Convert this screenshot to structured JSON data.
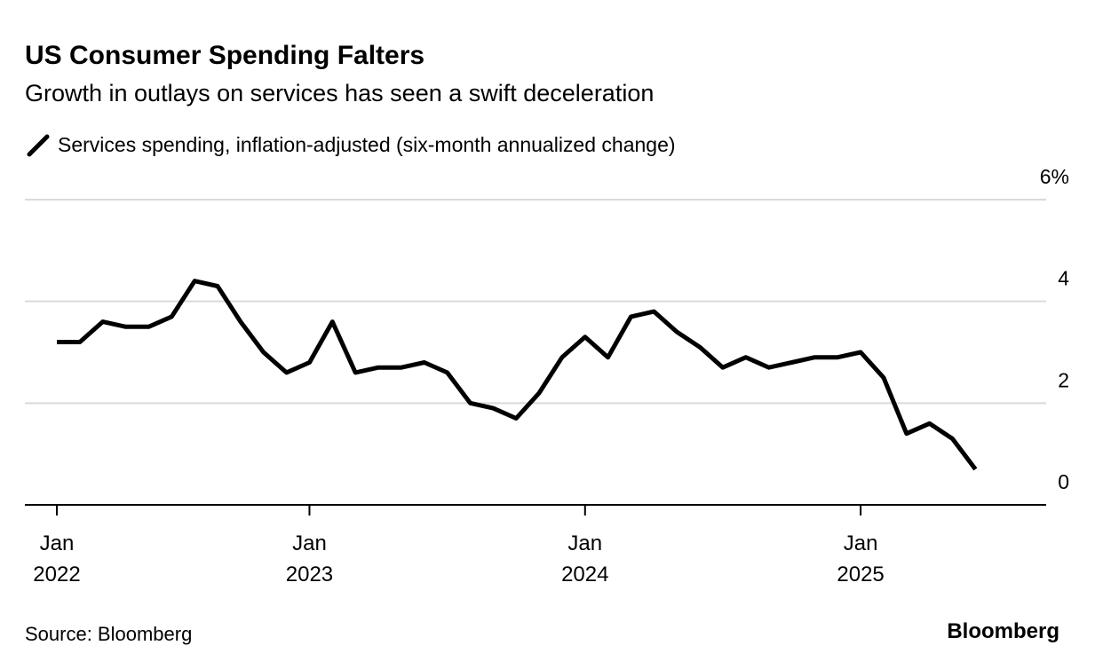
{
  "chart_data": {
    "type": "line",
    "title": "US Consumer Spending Falters",
    "subtitle": "Growth in outlays on services has seen a swift deceleration",
    "source": "Source: Bloomberg",
    "brand": "Bloomberg",
    "categories": [
      "Jan 2022",
      null,
      null,
      null,
      null,
      null,
      null,
      null,
      null,
      null,
      null,
      "Jan 2023",
      null,
      null,
      null,
      null,
      null,
      null,
      null,
      null,
      null,
      null,
      null,
      "Jan 2024",
      null,
      null,
      null,
      null,
      null,
      null,
      null,
      null,
      null,
      null,
      null,
      "Jan 2025",
      null,
      null,
      null,
      null,
      null
    ],
    "series": [
      {
        "name": "Services spending, inflation-adjusted (six-month annualized change)",
        "color": "#000000",
        "values": [
          3.2,
          3.2,
          3.6,
          3.5,
          3.5,
          3.7,
          4.4,
          4.3,
          3.6,
          3.0,
          2.6,
          2.8,
          3.6,
          2.6,
          2.7,
          2.7,
          2.8,
          2.6,
          2.0,
          1.9,
          1.7,
          2.2,
          2.9,
          3.3,
          2.9,
          3.7,
          3.8,
          3.4,
          3.1,
          2.7,
          2.9,
          2.7,
          2.8,
          2.9,
          2.9,
          3.0,
          2.5,
          1.4,
          1.6,
          1.3,
          0.7
        ]
      }
    ],
    "ylim": [
      0,
      6
    ],
    "yticks": [
      0,
      2,
      4,
      {
        "value": 6,
        "label": "6%"
      }
    ],
    "grid": true
  }
}
